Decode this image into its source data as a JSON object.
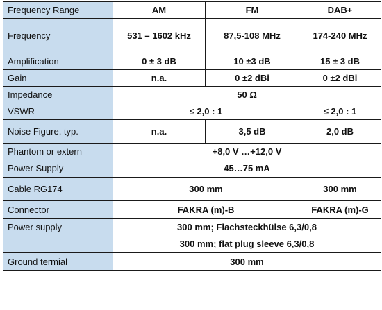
{
  "header": {
    "label": "Frequency Range",
    "am": "AM",
    "fm": "FM",
    "dab": "DAB+"
  },
  "rows": {
    "frequency": {
      "label": "Frequency",
      "am": "531 – 1602 kHz",
      "fm": "87,5-108 MHz",
      "dab": "174-240 MHz"
    },
    "amplification": {
      "label": "Amplification",
      "am": "0 ± 3 dB",
      "fm": "10 ±3 dB",
      "dab": "15 ± 3 dB"
    },
    "gain": {
      "label": "Gain",
      "am": "n.a.",
      "fm": "0 ±2 dBi",
      "dab": "0 ±2 dBi"
    },
    "impedance": {
      "label": "Impedance",
      "all": "50 Ω"
    },
    "vswr": {
      "label": "VSWR",
      "am_fm": "≤ 2,0 : 1",
      "dab": "≤ 2,0 : 1"
    },
    "noise": {
      "label": "Noise Figure, typ.",
      "am": "n.a.",
      "fm": "3,5 dB",
      "dab": "2,0 dB"
    },
    "phantom": {
      "label_line1": "Phantom or extern",
      "label_line2": "Power Supply",
      "value_line1": "+8,0 V …+12,0 V",
      "value_line2": "45…75 mA"
    },
    "cable": {
      "label": "Cable RG174",
      "am_fm": "300 mm",
      "dab": "300 mm"
    },
    "connector": {
      "label": "Connector",
      "am_fm": "FAKRA (m)-B",
      "dab": "FAKRA (m)-G"
    },
    "power": {
      "label": "Power supply",
      "value_line1": "300 mm; Flachsteckhülse 6,3/0,8",
      "value_line2": "300 mm; flat plug sleeve 6,3/0,8"
    },
    "ground": {
      "label": "Ground termial",
      "all": "300 mm"
    }
  },
  "colors": {
    "label_background": "#c8dcee",
    "value_background": "#ffffff",
    "border": "#1a1a1a"
  }
}
